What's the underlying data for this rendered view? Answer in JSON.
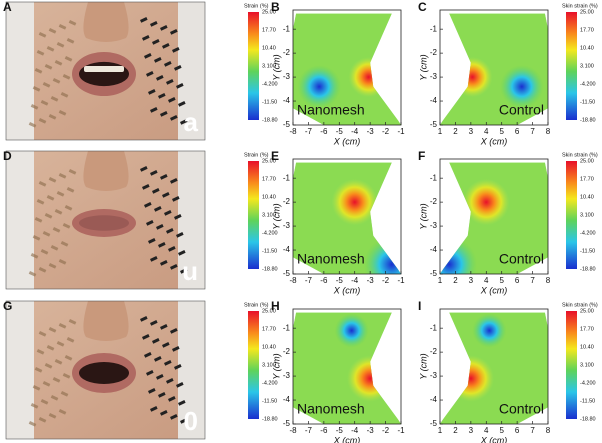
{
  "rows": [
    {
      "photo": {
        "label": "A",
        "letter": "a"
      },
      "nanomesh": {
        "label": "B",
        "name": "Nanomesh"
      },
      "control": {
        "label": "C",
        "name": "Control"
      }
    },
    {
      "photo": {
        "label": "D",
        "letter": "u"
      },
      "nanomesh": {
        "label": "E",
        "name": "Nanomesh"
      },
      "control": {
        "label": "F",
        "name": "Control"
      }
    },
    {
      "photo": {
        "label": "G",
        "letter": "0"
      },
      "nanomesh": {
        "label": "H",
        "name": "Nanomesh"
      },
      "control": {
        "label": "I",
        "name": "Control"
      }
    }
  ],
  "strain_colorbar": {
    "title": "Strain (%)",
    "ticks": [
      "25.00",
      "17.70",
      "10.40",
      "3.100",
      "-4.200",
      "-11.50",
      "-18.80"
    ]
  },
  "skin_colorbar": {
    "title": "Skin strain (%)",
    "ticks": [
      "25.00",
      "17.70",
      "10.40",
      "3.100",
      "-4.200",
      "-11.50",
      "-18.80"
    ]
  },
  "axes": {
    "x_label": "X (cm)",
    "y_label": "Y (cm)",
    "nanomesh_xticks": [
      -8,
      -7,
      -6,
      -5,
      -4,
      -3,
      -2,
      -1
    ],
    "control_xticks": [
      1,
      2,
      3,
      4,
      5,
      6,
      7,
      8
    ],
    "yticks": [
      -1,
      -2,
      -3,
      -4,
      -5
    ]
  }
}
